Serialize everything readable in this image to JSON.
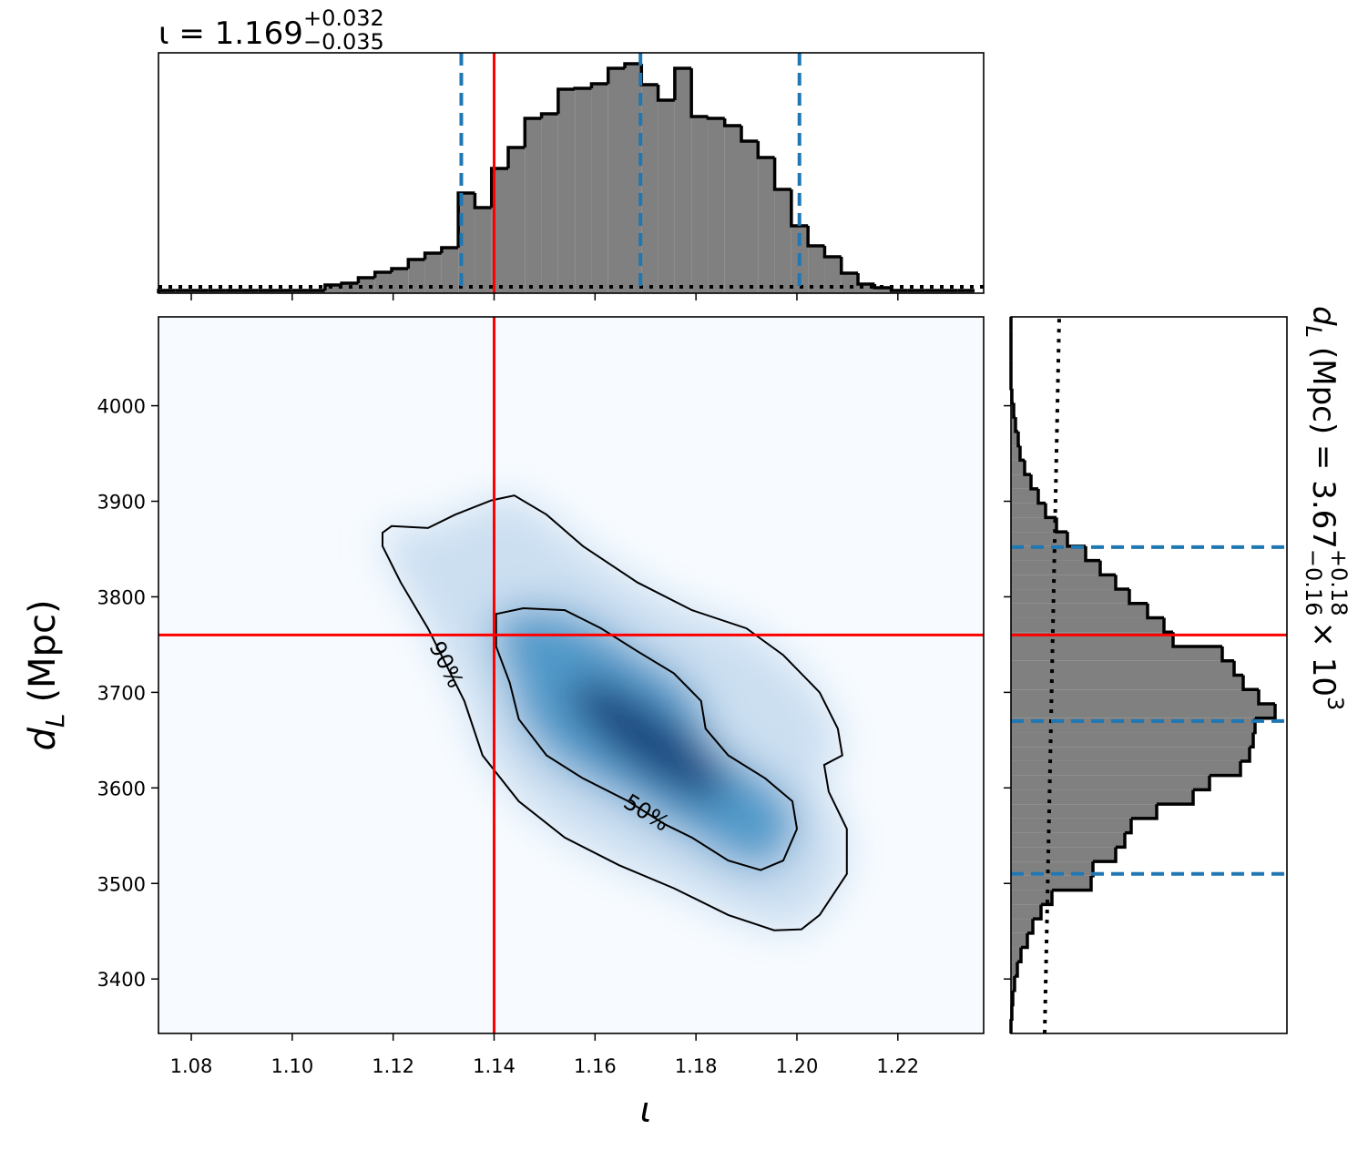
{
  "chart_data": [
    {
      "type": "histogram",
      "orientation": "vertical",
      "title": {
        "text": "ι = 1.169",
        "upper": "+0.032",
        "lower": "−0.035"
      },
      "bins": [
        1.0735,
        1.0768,
        1.0801,
        1.0834,
        1.0867,
        1.09,
        1.0933,
        1.0966,
        1.0999,
        1.1032,
        1.1065,
        1.1098,
        1.1131,
        1.1164,
        1.1197,
        1.123,
        1.1263,
        1.1296,
        1.1329,
        1.1362,
        1.1395,
        1.1428,
        1.1461,
        1.1494,
        1.1527,
        1.156,
        1.1593,
        1.1626,
        1.1659,
        1.1692,
        1.1725,
        1.1758,
        1.1791,
        1.1824,
        1.1857,
        1.189,
        1.1923,
        1.1956,
        1.1989,
        1.2022,
        1.2055,
        1.2088,
        1.2121,
        1.2154,
        1.2187,
        1.222,
        1.2253,
        1.2286,
        1.2319,
        1.2352
      ],
      "counts": [
        3,
        3,
        3,
        3,
        3,
        3,
        3,
        3,
        3,
        3,
        9,
        11,
        17,
        23,
        27,
        37,
        44,
        50,
        110,
        94,
        137,
        160,
        192,
        197,
        224,
        225,
        230,
        247,
        252,
        229,
        212,
        247,
        194,
        192,
        184,
        167,
        149,
        114,
        74,
        52,
        40,
        22,
        10,
        6,
        3,
        3,
        3,
        3,
        3
      ],
      "color": "#808080",
      "edgecolor": "#000000",
      "ylim": [
        0,
        264
      ],
      "quantiles": [
        1.1335,
        1.169,
        1.2005
      ],
      "quantile_color": "#1f77b4",
      "truth": 1.14,
      "truth_color": "#ff0000",
      "prior": [
        7,
        7
      ]
    },
    {
      "type": "density",
      "xlabel": "ι",
      "ylabel": {
        "symbol": "d",
        "subscript": "L",
        "unit": "(Mpc)"
      },
      "xlim": [
        1.0735,
        1.237
      ],
      "ylim": [
        3343,
        4093
      ],
      "xticks": [
        1.08,
        {
          "value": 1.1,
          "label": "1.10"
        },
        1.12,
        1.14,
        1.16,
        1.18,
        {
          "value": 1.2,
          "label": "1.20"
        },
        1.22
      ],
      "yticks": [
        3400,
        3500,
        3600,
        3700,
        3800,
        3900,
        4000
      ],
      "colors": [
        "#f7fbff",
        "#c6dbef",
        "#4292c6",
        "#08306b"
      ],
      "contours": [
        {
          "label": "90%",
          "x": [
            1.1179,
            1.1197,
            1.1269,
            1.1323,
            1.1395,
            1.144,
            1.1504,
            1.1576,
            1.1684,
            1.1792,
            1.19,
            1.1973,
            1.2045,
            1.2081,
            1.209,
            1.2054,
            1.2063,
            1.2099,
            1.2099,
            1.2045,
            1.2009,
            1.1955,
            1.1864,
            1.1756,
            1.1648,
            1.154,
            1.1449,
            1.1377,
            1.1341,
            1.1269,
            1.1215,
            1.1179
          ],
          "y": [
            3867,
            3874,
            3872,
            3886,
            3901,
            3906,
            3886,
            3853,
            3815,
            3786,
            3767,
            3739,
            3700,
            3662,
            3634,
            3624,
            3596,
            3557,
            3510,
            3467,
            3452,
            3451,
            3467,
            3495,
            3519,
            3548,
            3586,
            3634,
            3691,
            3767,
            3815,
            3853
          ]
        },
        {
          "label": "50%",
          "x": [
            1.1404,
            1.1458,
            1.154,
            1.1612,
            1.1684,
            1.1756,
            1.181,
            1.1819,
            1.1864,
            1.1937,
            1.1991,
            1.2,
            1.1973,
            1.1928,
            1.1864,
            1.1792,
            1.1738,
            1.1666,
            1.1576,
            1.1504,
            1.1449,
            1.1431,
            1.1404
          ],
          "y": [
            3782,
            3788,
            3786,
            3767,
            3743,
            3720,
            3691,
            3662,
            3634,
            3610,
            3586,
            3557,
            3524,
            3514,
            3524,
            3548,
            3562,
            3586,
            3610,
            3634,
            3672,
            3710,
            3748
          ]
        }
      ],
      "truth": {
        "x": 1.14,
        "y": 3760
      },
      "truth_color": "#ff0000"
    },
    {
      "type": "histogram",
      "orientation": "horizontal",
      "label": {
        "symbol": "d",
        "subscript": "L",
        "text": "(Mpc) = 3.67",
        "upper": "+0.18",
        "lower": "−0.16",
        "times": "× 10",
        "exponent": "3"
      },
      "bins": [
        3343,
        3358,
        3373,
        3388,
        3403,
        3418,
        3433,
        3448,
        3463,
        3478,
        3493,
        3508,
        3523,
        3538,
        3553,
        3568,
        3583,
        3598,
        3613,
        3628,
        3643,
        3658,
        3673,
        3688,
        3703,
        3718,
        3733,
        3748,
        3763,
        3778,
        3793,
        3808,
        3823,
        3838,
        3853,
        3868,
        3883,
        3898,
        3913,
        3928,
        3943,
        3958,
        3973,
        3988,
        4003,
        4018,
        4033,
        4048,
        4063,
        4078,
        4093
      ],
      "counts": [
        0,
        1,
        2,
        4,
        7,
        11,
        18,
        24,
        33,
        45,
        88,
        90,
        115,
        125,
        132,
        160,
        200,
        218,
        252,
        262,
        266,
        268,
        290,
        272,
        255,
        245,
        232,
        178,
        168,
        150,
        130,
        115,
        98,
        82,
        62,
        50,
        38,
        30,
        22,
        15,
        10,
        8,
        5,
        3,
        1,
        0,
        0,
        0,
        0,
        0
      ],
      "color": "#808080",
      "edgecolor": "#000000",
      "xlim": [
        0,
        303
      ],
      "quantiles": [
        3510,
        3670,
        3852
      ],
      "quantile_color": "#1f77b4",
      "truth": 3760,
      "truth_color": "#ff0000",
      "prior": [
        37,
        53
      ]
    }
  ]
}
